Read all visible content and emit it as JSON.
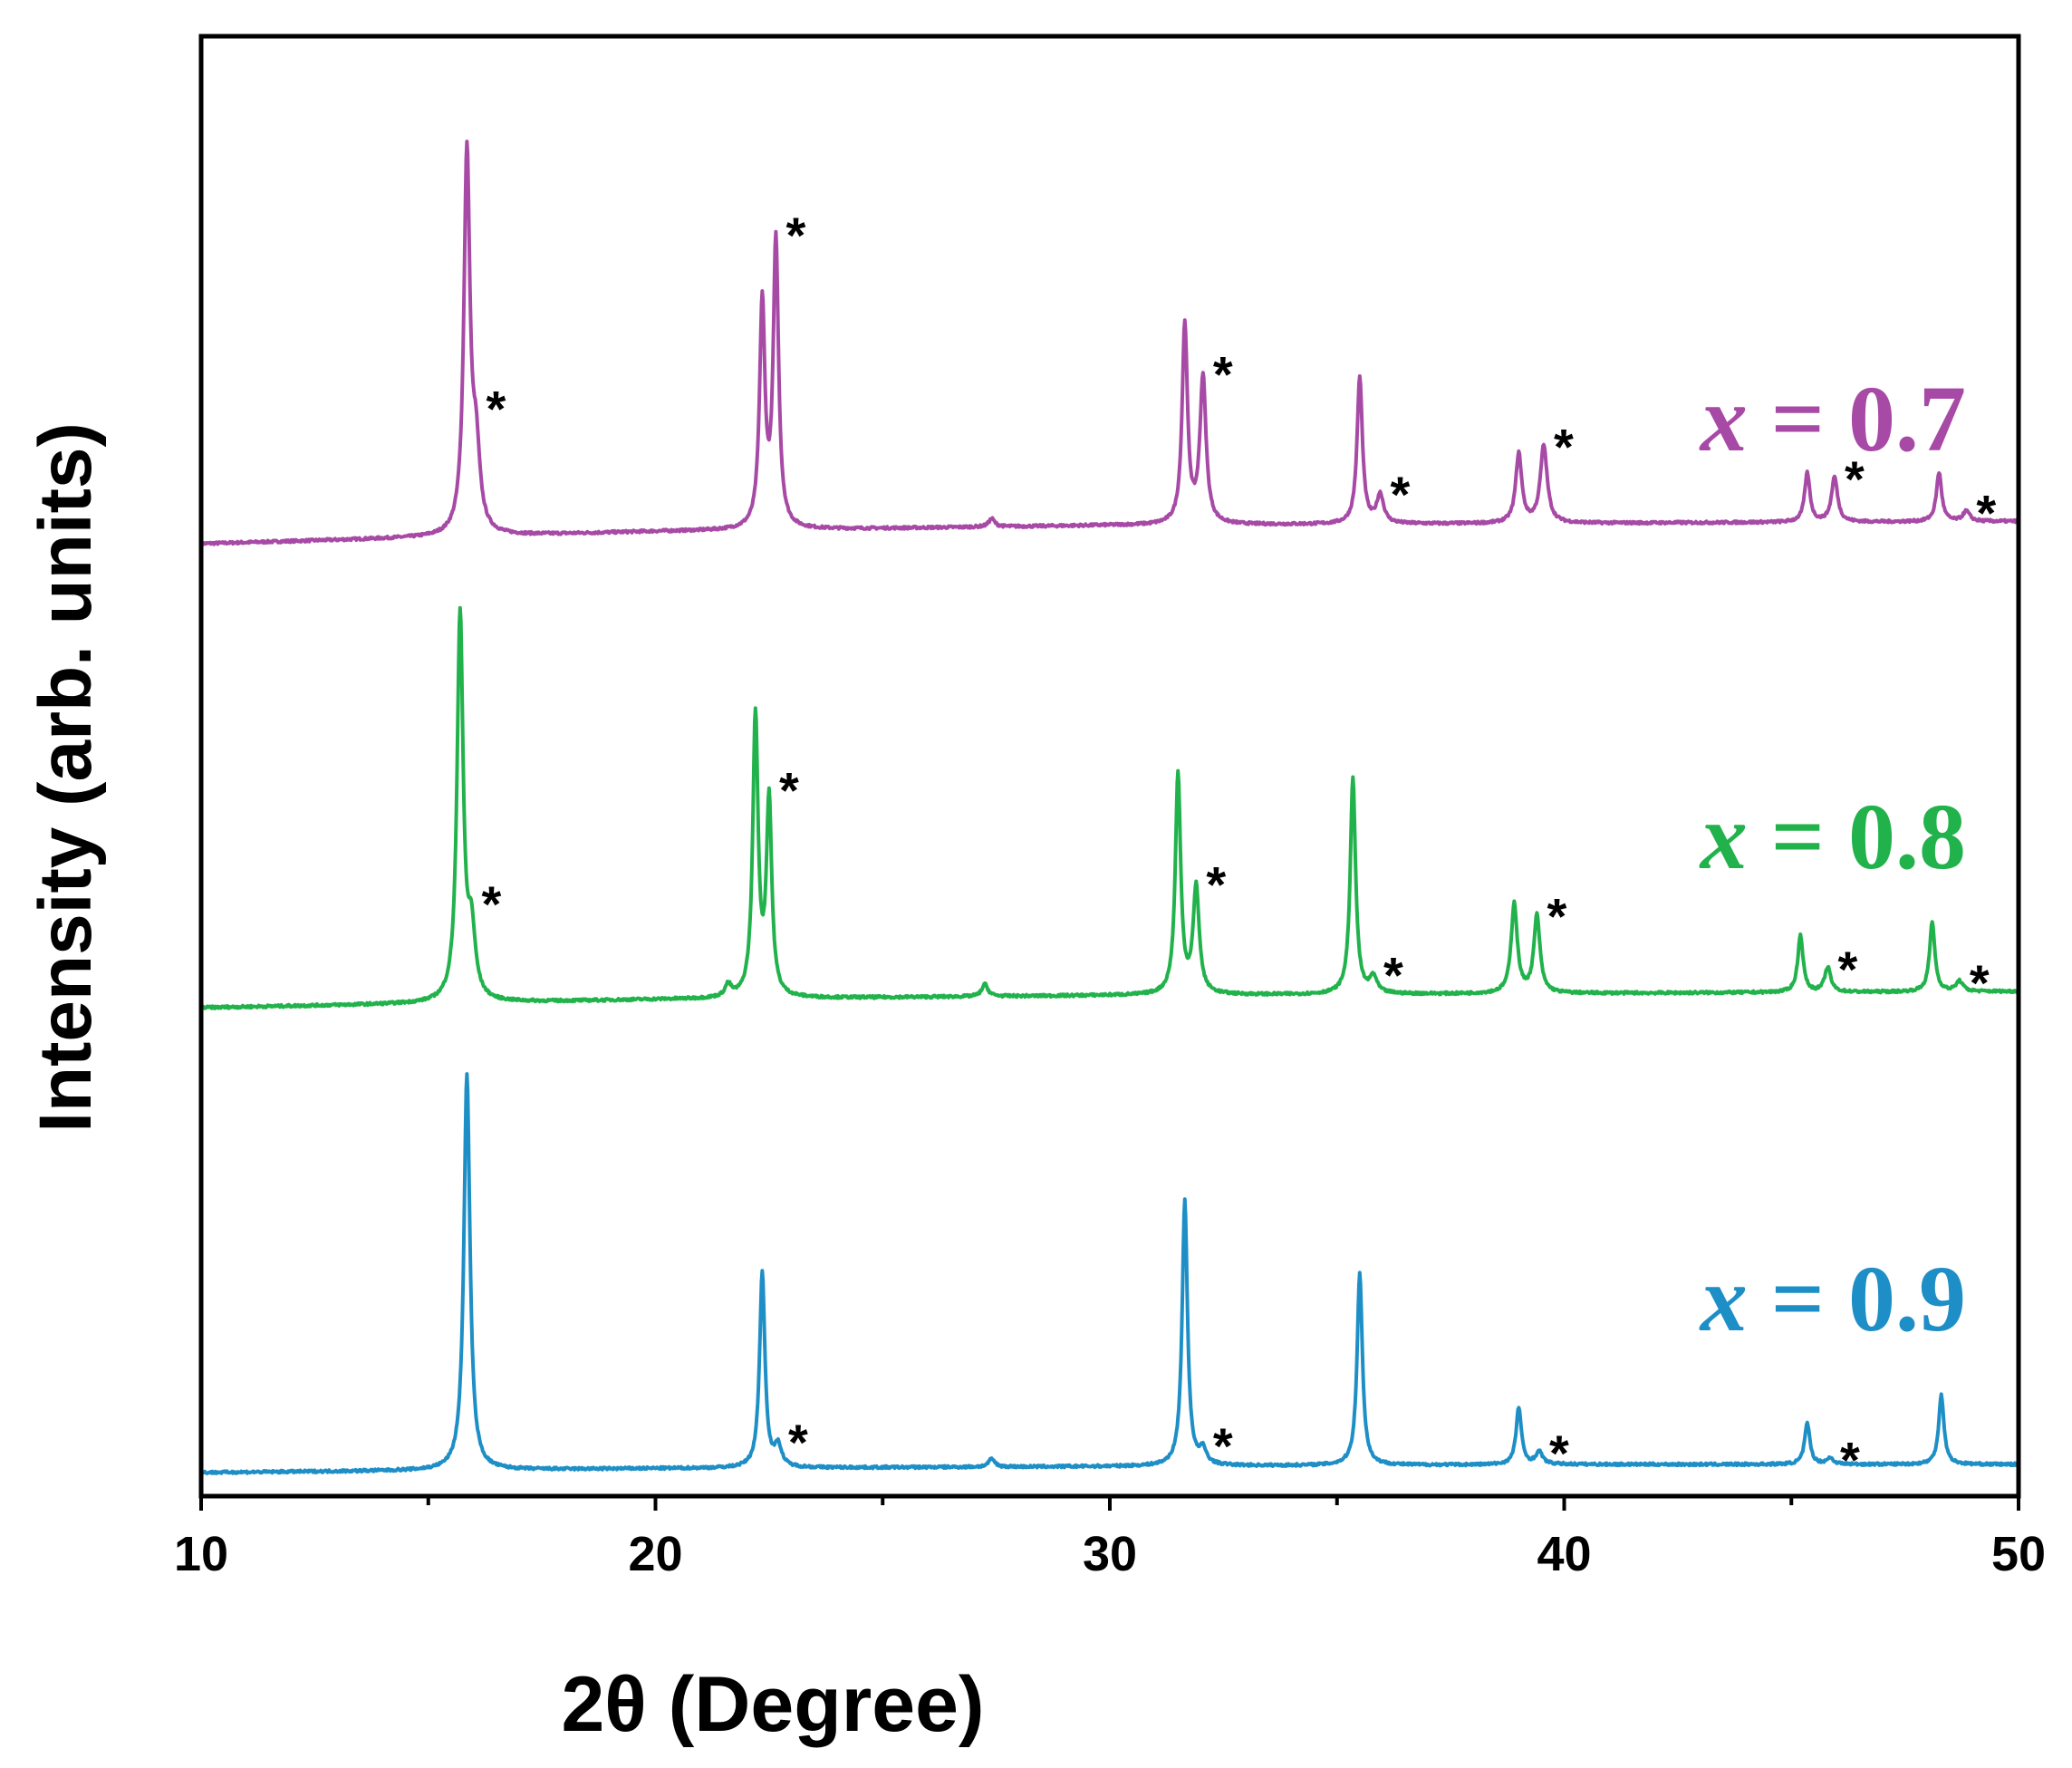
{
  "chart_data": {
    "type": "line",
    "title": "",
    "xlabel": "2θ (Degree)",
    "ylabel": "Intensity (arb. units)",
    "xlim": [
      10,
      50
    ],
    "xticks": [
      10,
      20,
      30,
      40,
      50
    ],
    "xtick_labels": [
      "10",
      "20",
      "30",
      "40",
      "50"
    ],
    "x_minor_step": 5,
    "yticks": [],
    "grid": false,
    "marker_symbol": "*",
    "series": [
      {
        "name": "x = 0.7",
        "label_var": "x",
        "label_rest": " = 0.7",
        "color": "#a74aa6",
        "baseline": [
          [
            10,
            0.0
          ],
          [
            20,
            0.03
          ],
          [
            30,
            0.045
          ],
          [
            40,
            0.05
          ],
          [
            50,
            0.055
          ]
        ],
        "peaks": [
          {
            "x": 15.85,
            "h": 0.93,
            "w": 0.08
          },
          {
            "x": 16.05,
            "h": 0.19,
            "w": 0.1
          },
          {
            "x": 22.35,
            "h": 0.55,
            "w": 0.07
          },
          {
            "x": 22.65,
            "h": 0.7,
            "w": 0.07
          },
          {
            "x": 27.4,
            "h": 0.02,
            "w": 0.08
          },
          {
            "x": 31.65,
            "h": 0.49,
            "w": 0.07
          },
          {
            "x": 32.05,
            "h": 0.36,
            "w": 0.08
          },
          {
            "x": 35.5,
            "h": 0.36,
            "w": 0.07
          },
          {
            "x": 35.95,
            "h": 0.07,
            "w": 0.09
          },
          {
            "x": 39.0,
            "h": 0.17,
            "w": 0.08
          },
          {
            "x": 39.55,
            "h": 0.19,
            "w": 0.09
          },
          {
            "x": 45.35,
            "h": 0.12,
            "w": 0.07
          },
          {
            "x": 45.95,
            "h": 0.11,
            "w": 0.08
          },
          {
            "x": 48.25,
            "h": 0.12,
            "w": 0.07
          },
          {
            "x": 48.85,
            "h": 0.025,
            "w": 0.09
          }
        ],
        "starred_peaks": [
          16.05,
          22.65,
          32.05,
          35.95,
          39.55,
          45.95,
          48.85
        ]
      },
      {
        "name": "x = 0.8",
        "label_var": "x",
        "label_rest": " = 0.8",
        "color": "#22b24c",
        "baseline": [
          [
            10,
            0.0
          ],
          [
            20,
            0.02
          ],
          [
            30,
            0.03
          ],
          [
            40,
            0.035
          ],
          [
            50,
            0.04
          ]
        ],
        "peaks": [
          {
            "x": 15.7,
            "h": 0.95,
            "w": 0.08
          },
          {
            "x": 15.95,
            "h": 0.16,
            "w": 0.1
          },
          {
            "x": 21.6,
            "h": 0.03,
            "w": 0.08
          },
          {
            "x": 22.2,
            "h": 0.69,
            "w": 0.07
          },
          {
            "x": 22.5,
            "h": 0.48,
            "w": 0.07
          },
          {
            "x": 27.25,
            "h": 0.03,
            "w": 0.08
          },
          {
            "x": 31.5,
            "h": 0.54,
            "w": 0.07
          },
          {
            "x": 31.9,
            "h": 0.26,
            "w": 0.08
          },
          {
            "x": 35.35,
            "h": 0.53,
            "w": 0.07
          },
          {
            "x": 35.8,
            "h": 0.04,
            "w": 0.09
          },
          {
            "x": 38.9,
            "h": 0.22,
            "w": 0.08
          },
          {
            "x": 39.4,
            "h": 0.19,
            "w": 0.08
          },
          {
            "x": 45.2,
            "h": 0.14,
            "w": 0.07
          },
          {
            "x": 45.8,
            "h": 0.06,
            "w": 0.08
          },
          {
            "x": 48.1,
            "h": 0.17,
            "w": 0.07
          },
          {
            "x": 48.7,
            "h": 0.025,
            "w": 0.09
          }
        ],
        "starred_peaks": [
          15.95,
          22.5,
          31.9,
          35.8,
          39.4,
          45.8,
          48.7
        ]
      },
      {
        "name": "x = 0.9",
        "label_var": "x",
        "label_rest": " = 0.9",
        "color": "#1e8fc6",
        "baseline": [
          [
            10,
            0.0
          ],
          [
            20,
            0.01
          ],
          [
            30,
            0.015
          ],
          [
            40,
            0.02
          ],
          [
            50,
            0.02
          ]
        ],
        "peaks": [
          {
            "x": 15.85,
            "h": 0.97,
            "w": 0.08
          },
          {
            "x": 22.35,
            "h": 0.48,
            "w": 0.07
          },
          {
            "x": 22.7,
            "h": 0.05,
            "w": 0.09
          },
          {
            "x": 27.4,
            "h": 0.02,
            "w": 0.08
          },
          {
            "x": 31.65,
            "h": 0.65,
            "w": 0.07
          },
          {
            "x": 32.05,
            "h": 0.035,
            "w": 0.09
          },
          {
            "x": 35.5,
            "h": 0.47,
            "w": 0.07
          },
          {
            "x": 39.0,
            "h": 0.14,
            "w": 0.07
          },
          {
            "x": 39.45,
            "h": 0.03,
            "w": 0.09
          },
          {
            "x": 45.35,
            "h": 0.1,
            "w": 0.07
          },
          {
            "x": 45.85,
            "h": 0.015,
            "w": 0.09
          },
          {
            "x": 48.3,
            "h": 0.17,
            "w": 0.07
          }
        ],
        "starred_peaks": [
          22.7,
          32.05,
          39.45,
          45.85
        ]
      }
    ],
    "legend": "right, inline next to each pattern"
  }
}
